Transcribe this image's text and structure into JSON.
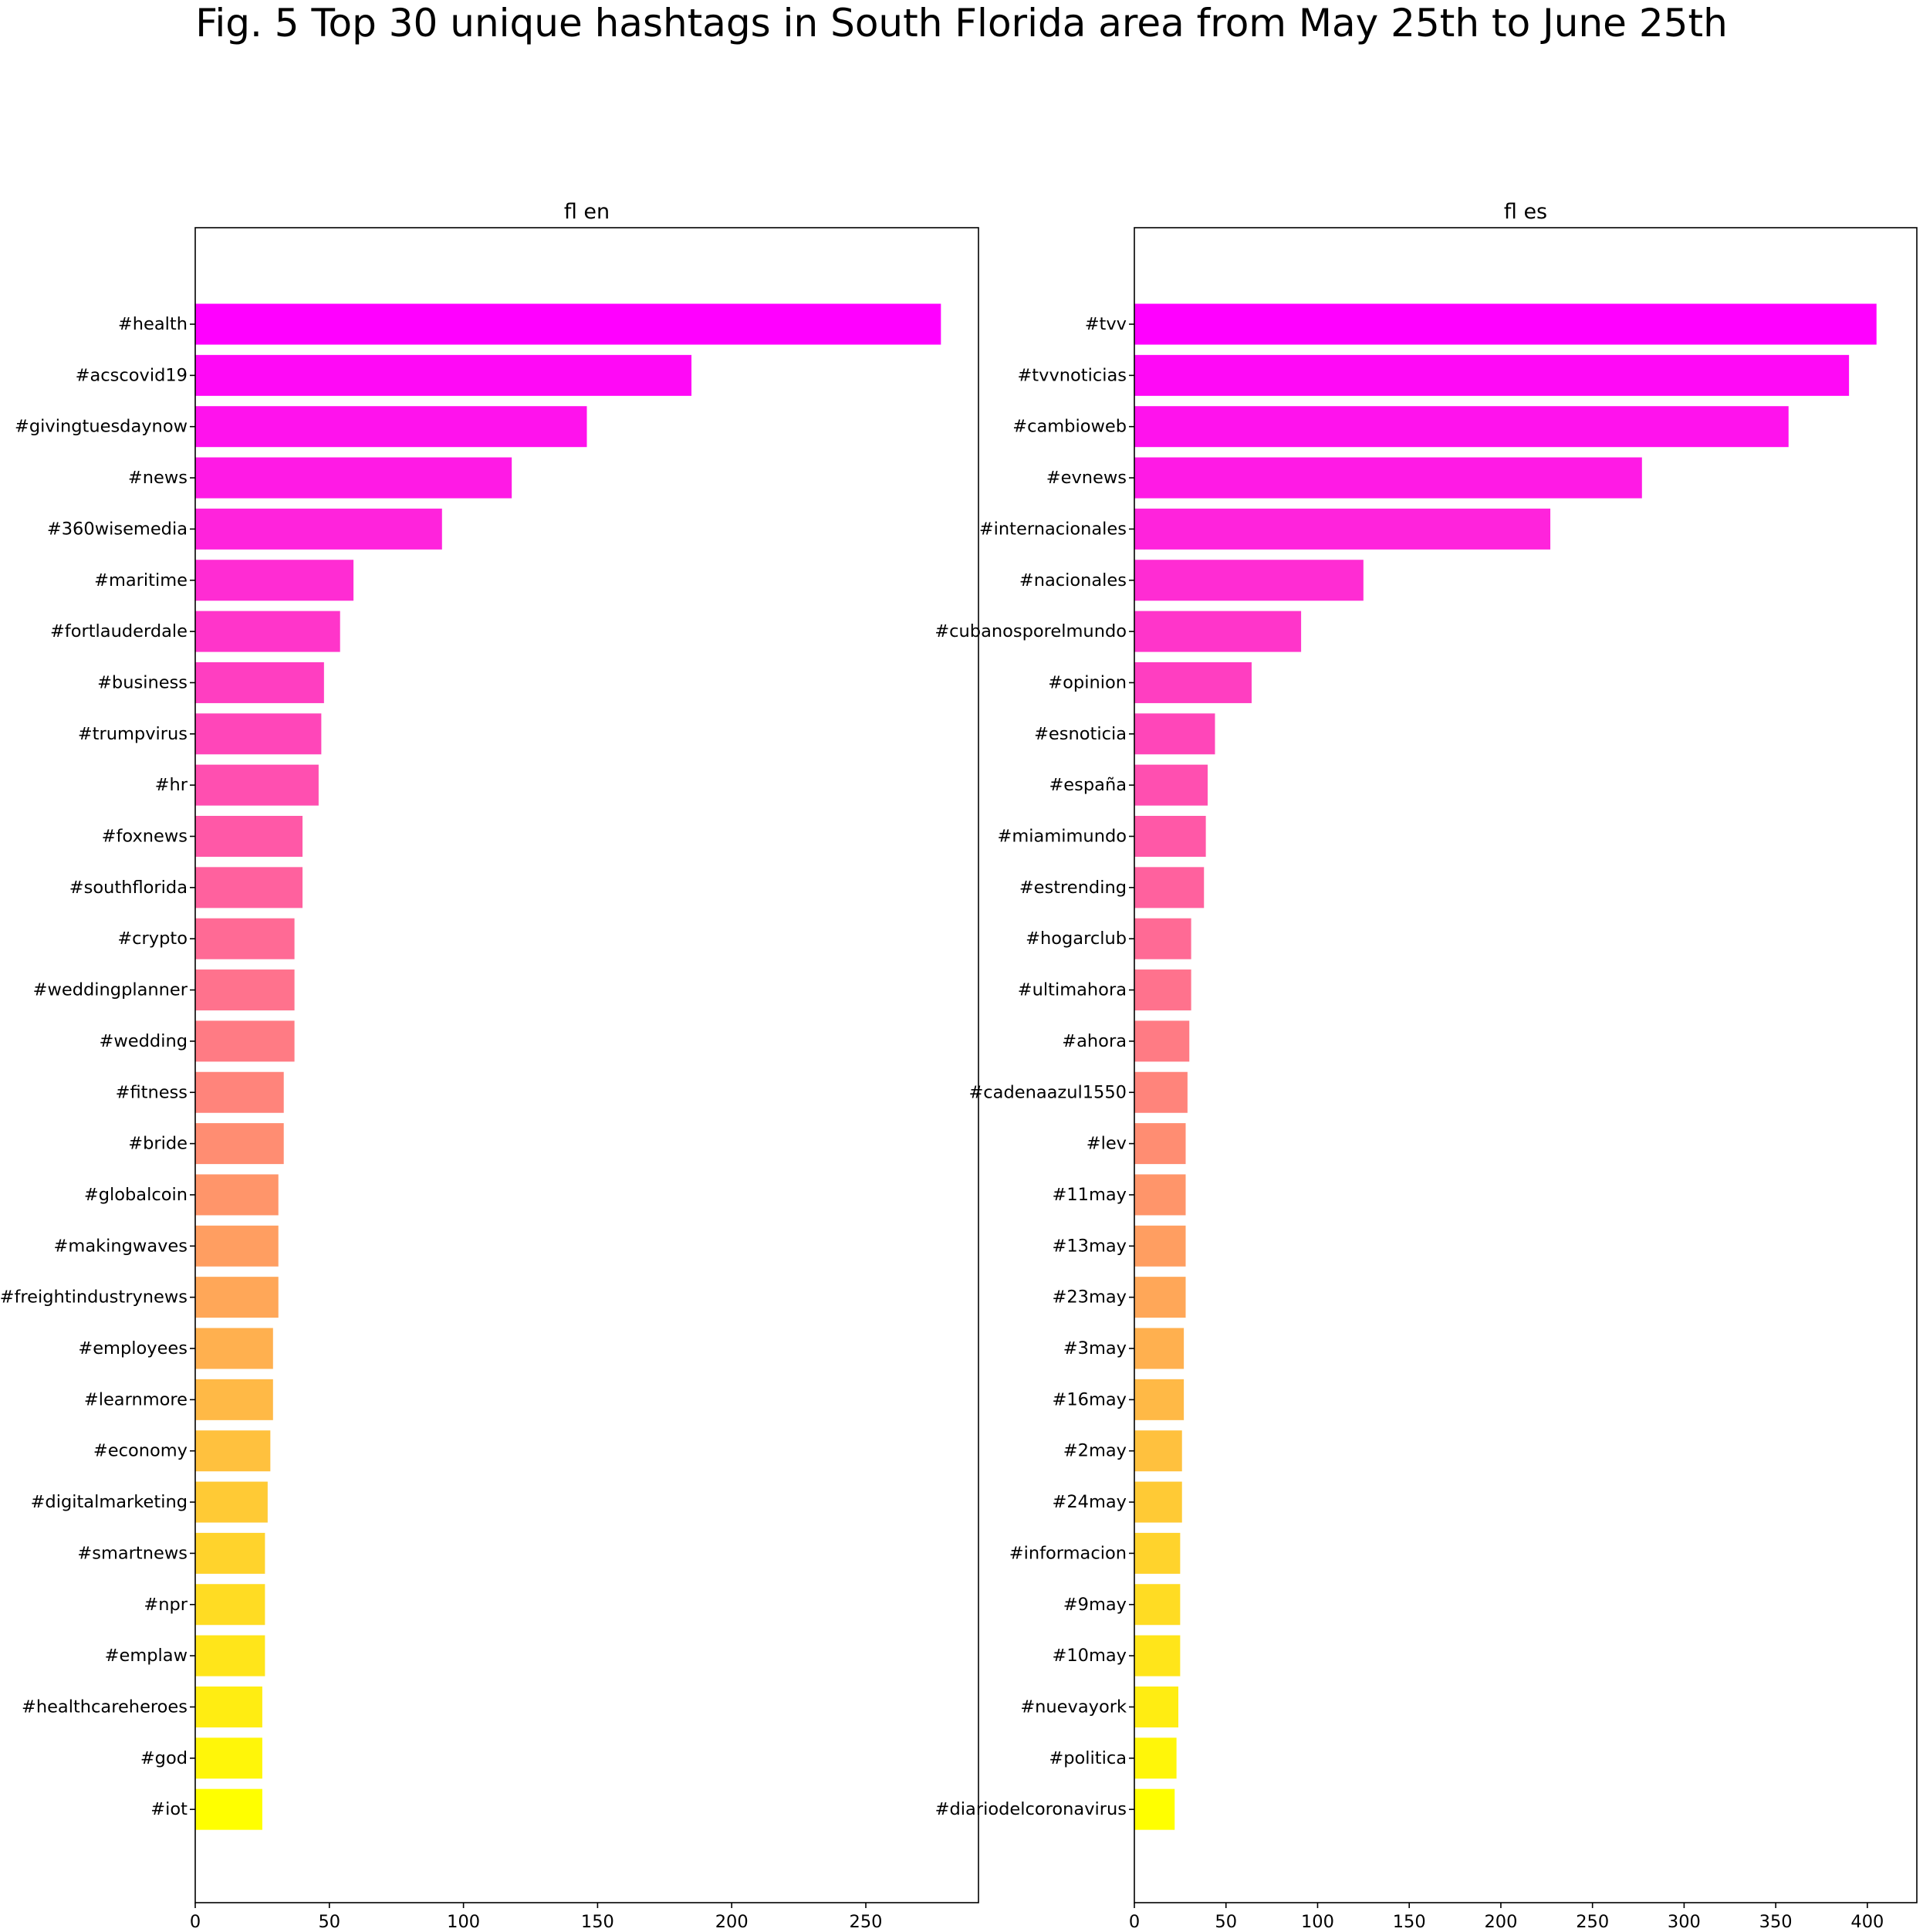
{
  "title": "Fig. 5 Top 30 unique hashtags in South Florida area from May 25th to June 25th",
  "chart_data": [
    {
      "type": "bar",
      "orientation": "horizontal",
      "title": "fl en",
      "xlim": [
        0,
        292
      ],
      "xticks": [
        0,
        50,
        100,
        150,
        200,
        250
      ],
      "categories": [
        "#health",
        "#acscovid19",
        "#givingtuesdaynow",
        "#news",
        "#360wisemedia",
        "#maritime",
        "#fortlauderdale",
        "#business",
        "#trumpvirus",
        "#hr",
        "#foxnews",
        "#southflorida",
        "#crypto",
        "#weddingplanner",
        "#wedding",
        "#fitness",
        "#bride",
        "#globalcoin",
        "#makingwaves",
        "#freightindustrynews",
        "#employees",
        "#learnmore",
        "#economy",
        "#digitalmarketing",
        "#smartnews",
        "#npr",
        "#emplaw",
        "#healthcareheroes",
        "#god",
        "#iot"
      ],
      "values": [
        278,
        185,
        146,
        118,
        92,
        59,
        54,
        48,
        47,
        46,
        40,
        40,
        37,
        37,
        37,
        33,
        33,
        31,
        31,
        31,
        29,
        29,
        28,
        27,
        26,
        26,
        26,
        25,
        25,
        25
      ],
      "colormap": "spring (magenta #ff00ff to yellow #ffff00)"
    },
    {
      "type": "bar",
      "orientation": "horizontal",
      "title": "fl es",
      "xlim": [
        0,
        427
      ],
      "xticks": [
        0,
        50,
        100,
        150,
        200,
        250,
        300,
        350,
        400
      ],
      "categories": [
        "#tvv",
        "#tvvnoticias",
        "#cambioweb",
        "#evnews",
        "#internacionales",
        "#nacionales",
        "#cubanosporelmundo",
        "#opinion",
        "#esnoticia",
        "#españa",
        "#miamimundo",
        "#estrending",
        "#hogarclub",
        "#ultimahora",
        "#ahora",
        "#cadenaazul1550",
        "#lev",
        "#11may",
        "#13may",
        "#23may",
        "#3may",
        "#16may",
        "#2may",
        "#24may",
        "#informacion",
        "#9may",
        "#10may",
        "#nuevayork",
        "#politica",
        "#diariodelcoronavirus"
      ],
      "values": [
        405,
        390,
        357,
        277,
        227,
        125,
        91,
        64,
        44,
        40,
        39,
        38,
        31,
        31,
        30,
        29,
        28,
        28,
        28,
        28,
        27,
        27,
        26,
        26,
        25,
        25,
        25,
        24,
        23,
        22
      ],
      "colormap": "spring (magenta #ff00ff to yellow #ffff00)"
    }
  ]
}
